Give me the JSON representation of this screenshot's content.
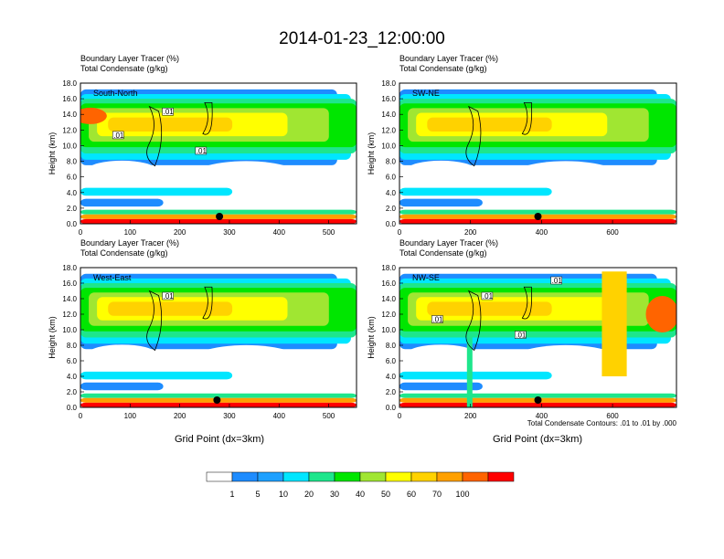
{
  "chart_data": {
    "type": "heatmap",
    "title": "2014-01-23_12:00:00",
    "xlabel": "Grid Point (dx=3km)",
    "ylabel": "Height (km)",
    "ylim": [
      0,
      18
    ],
    "yticks": [
      "0.0",
      "2.0",
      "4.0",
      "6.0",
      "8.0",
      "10.0",
      "12.0",
      "14.0",
      "16.0",
      "18.0"
    ],
    "field_labels": [
      "Boundary Layer Tracer   (%)",
      "Total Condensate   (g/kg)"
    ],
    "contour_note": "Total Condensate Contours: .01 to .01 by .000",
    "colorbar": {
      "labels": [
        "1",
        "5",
        "10",
        "20",
        "30",
        "40",
        "50",
        "60",
        "70",
        "100"
      ],
      "colors": [
        "#ffffff",
        "#1e8cff",
        "#1ea0ff",
        "#00e6ff",
        "#1ee68c",
        "#00e600",
        "#a0e632",
        "#ffff00",
        "#ffd200",
        "#ffa000",
        "#ff6400",
        "#ff0000"
      ]
    },
    "panels": [
      {
        "id": "south-north",
        "name": "South-North",
        "xlim": [
          0,
          556
        ],
        "xticks": [
          0,
          100,
          200,
          300,
          400,
          500
        ],
        "marker_x": 280,
        "contour_labels": [
          ".01",
          ".01",
          ".01"
        ]
      },
      {
        "id": "sw-ne",
        "name": "SW-NE",
        "xlim": [
          0,
          780
        ],
        "xticks": [
          0,
          200,
          400,
          600
        ],
        "marker_x": 390,
        "contour_labels": []
      },
      {
        "id": "west-east",
        "name": "West-East",
        "xlim": [
          0,
          556
        ],
        "xticks": [
          0,
          100,
          200,
          300,
          400,
          500
        ],
        "marker_x": 275,
        "contour_labels": [
          ".01"
        ]
      },
      {
        "id": "nw-se",
        "name": "NW-SE",
        "xlim": [
          0,
          780
        ],
        "xticks": [
          0,
          200,
          400,
          600
        ],
        "marker_x": 390,
        "contour_labels": [
          ".01",
          ".01",
          ".01",
          ".01"
        ]
      }
    ]
  }
}
